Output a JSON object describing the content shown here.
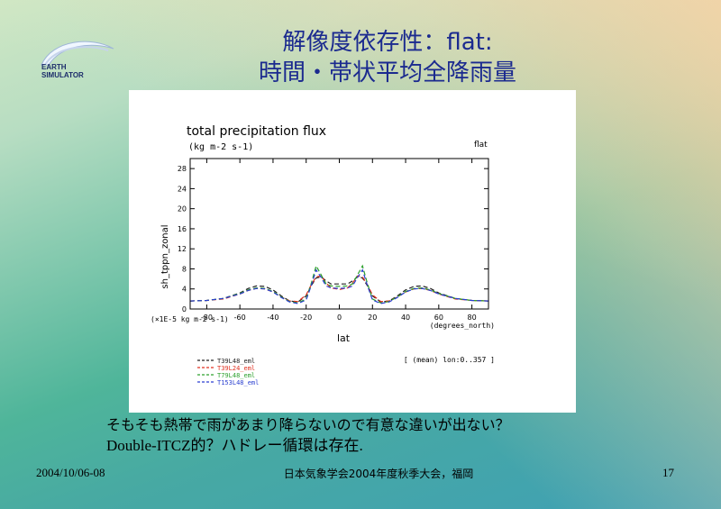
{
  "slide": {
    "title_line1": "解像度依存性：flat:",
    "title_line2": "時間・帯状平均全降雨量",
    "logo": {
      "line1": "EARTH",
      "line2": "SIMULATOR"
    },
    "note_line1": "そもそも熱帯で雨があまり降らないので有意な違いが出ない？",
    "note_line2": "Double-ITCZ的？ハドレー循環は存在.",
    "footer_date": "2004/10/06-08",
    "footer_meeting": "日本気象学会2004年度秋季大会，福岡",
    "page_number": "17"
  },
  "chart_data": {
    "type": "line",
    "title": "total precipitation flux",
    "units": "(kg m-2 s-1)",
    "tag": "flat",
    "ylabel": "sh_tppn_zonal",
    "xlabel": "lat",
    "x_unit_label": "(degrees_north)",
    "y_scale_label": "(×1E-5 kg m-2 s-1)",
    "mean_note": "[ (mean) lon:0..357 ]",
    "xlim": [
      -90,
      90
    ],
    "ylim": [
      0,
      30
    ],
    "x_ticks": [
      -80,
      -60,
      -40,
      -20,
      0,
      20,
      40,
      60,
      80
    ],
    "y_ticks": [
      0,
      4,
      8,
      12,
      16,
      20,
      24,
      28
    ],
    "x": [
      -90,
      -80,
      -70,
      -60,
      -55,
      -50,
      -45,
      -40,
      -35,
      -30,
      -25,
      -20,
      -17,
      -14,
      -11,
      -8,
      -5,
      0,
      5,
      8,
      11,
      14,
      17,
      20,
      25,
      30,
      35,
      40,
      45,
      50,
      55,
      60,
      70,
      80,
      90
    ],
    "series": [
      {
        "name": "T39L48_eml",
        "color": "#222222",
        "dash": "5,3",
        "values": [
          1.6,
          1.7,
          2.1,
          3.2,
          4.1,
          4.6,
          4.5,
          3.8,
          2.6,
          1.6,
          1.4,
          2.6,
          4.6,
          6.2,
          6.4,
          5.6,
          5.0,
          5.0,
          5.0,
          5.6,
          6.4,
          6.2,
          4.6,
          2.6,
          1.4,
          1.6,
          2.6,
          3.8,
          4.5,
          4.6,
          4.1,
          3.2,
          2.1,
          1.7,
          1.6
        ]
      },
      {
        "name": "T39L24_eml",
        "color": "#e03020",
        "dash": "5,3",
        "values": [
          1.6,
          1.7,
          2.0,
          3.0,
          3.7,
          4.1,
          4.0,
          3.4,
          2.4,
          1.6,
          1.5,
          2.8,
          4.8,
          6.4,
          6.6,
          5.2,
          4.2,
          3.9,
          4.2,
          5.2,
          6.6,
          6.4,
          4.8,
          2.8,
          1.5,
          1.6,
          2.4,
          3.4,
          4.0,
          4.1,
          3.7,
          3.0,
          2.0,
          1.7,
          1.6
        ]
      },
      {
        "name": "T79L48_eml",
        "color": "#2ca02c",
        "dash": "5,3",
        "values": [
          1.6,
          1.7,
          2.1,
          3.1,
          3.8,
          4.2,
          4.1,
          3.5,
          2.4,
          1.5,
          1.2,
          2.0,
          5.0,
          8.6,
          6.8,
          5.0,
          4.6,
          4.5,
          4.6,
          5.0,
          6.8,
          8.6,
          5.0,
          2.0,
          1.2,
          1.5,
          2.4,
          3.5,
          4.1,
          4.2,
          3.8,
          3.1,
          2.1,
          1.7,
          1.6
        ]
      },
      {
        "name": "T153L48_eml",
        "color": "#2a3fd0",
        "dash": "5,3",
        "values": [
          1.6,
          1.7,
          2.1,
          3.0,
          3.7,
          4.1,
          4.0,
          3.4,
          2.3,
          1.4,
          1.1,
          1.8,
          4.6,
          7.8,
          6.3,
          4.6,
          4.2,
          4.1,
          4.2,
          4.6,
          6.3,
          7.8,
          4.6,
          1.8,
          1.1,
          1.4,
          2.3,
          3.4,
          4.0,
          4.1,
          3.7,
          3.0,
          2.1,
          1.7,
          1.6
        ]
      }
    ]
  }
}
